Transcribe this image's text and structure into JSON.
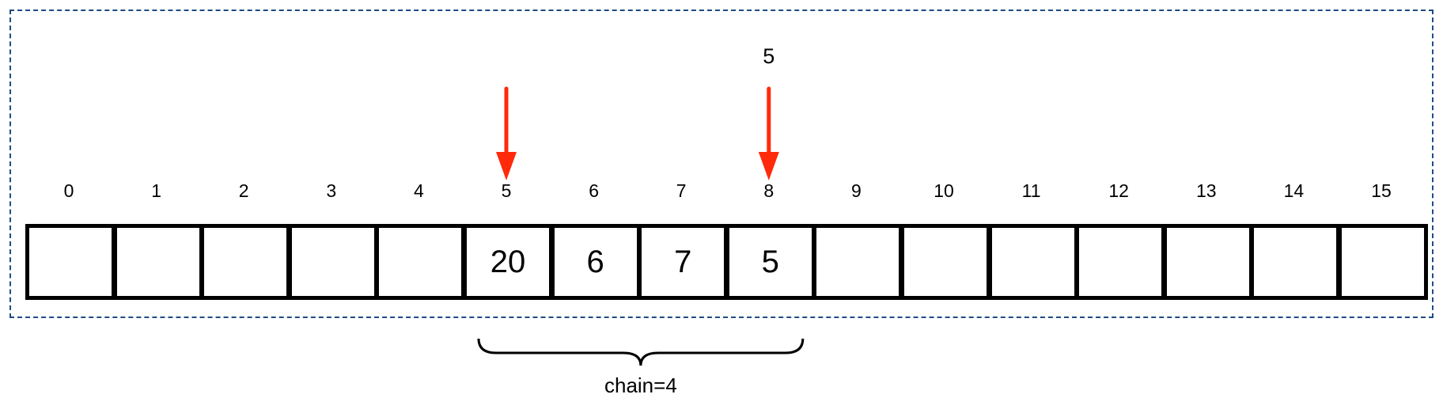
{
  "array": {
    "indices": [
      "0",
      "1",
      "2",
      "3",
      "4",
      "5",
      "6",
      "7",
      "8",
      "9",
      "10",
      "11",
      "12",
      "13",
      "14",
      "15"
    ],
    "values": [
      "",
      "",
      "",
      "",
      "",
      "20",
      "6",
      "7",
      "5",
      "",
      "",
      "",
      "",
      "",
      "",
      ""
    ]
  },
  "pointers": [
    {
      "index": 5,
      "label": ""
    },
    {
      "index": 8,
      "label": "5"
    }
  ],
  "chain": {
    "start_index": 5,
    "end_index": 8,
    "label": "chain=4"
  },
  "colors": {
    "arrow": "#ff2a0a",
    "frame": "#1f4a86",
    "cell_border": "#000000"
  }
}
